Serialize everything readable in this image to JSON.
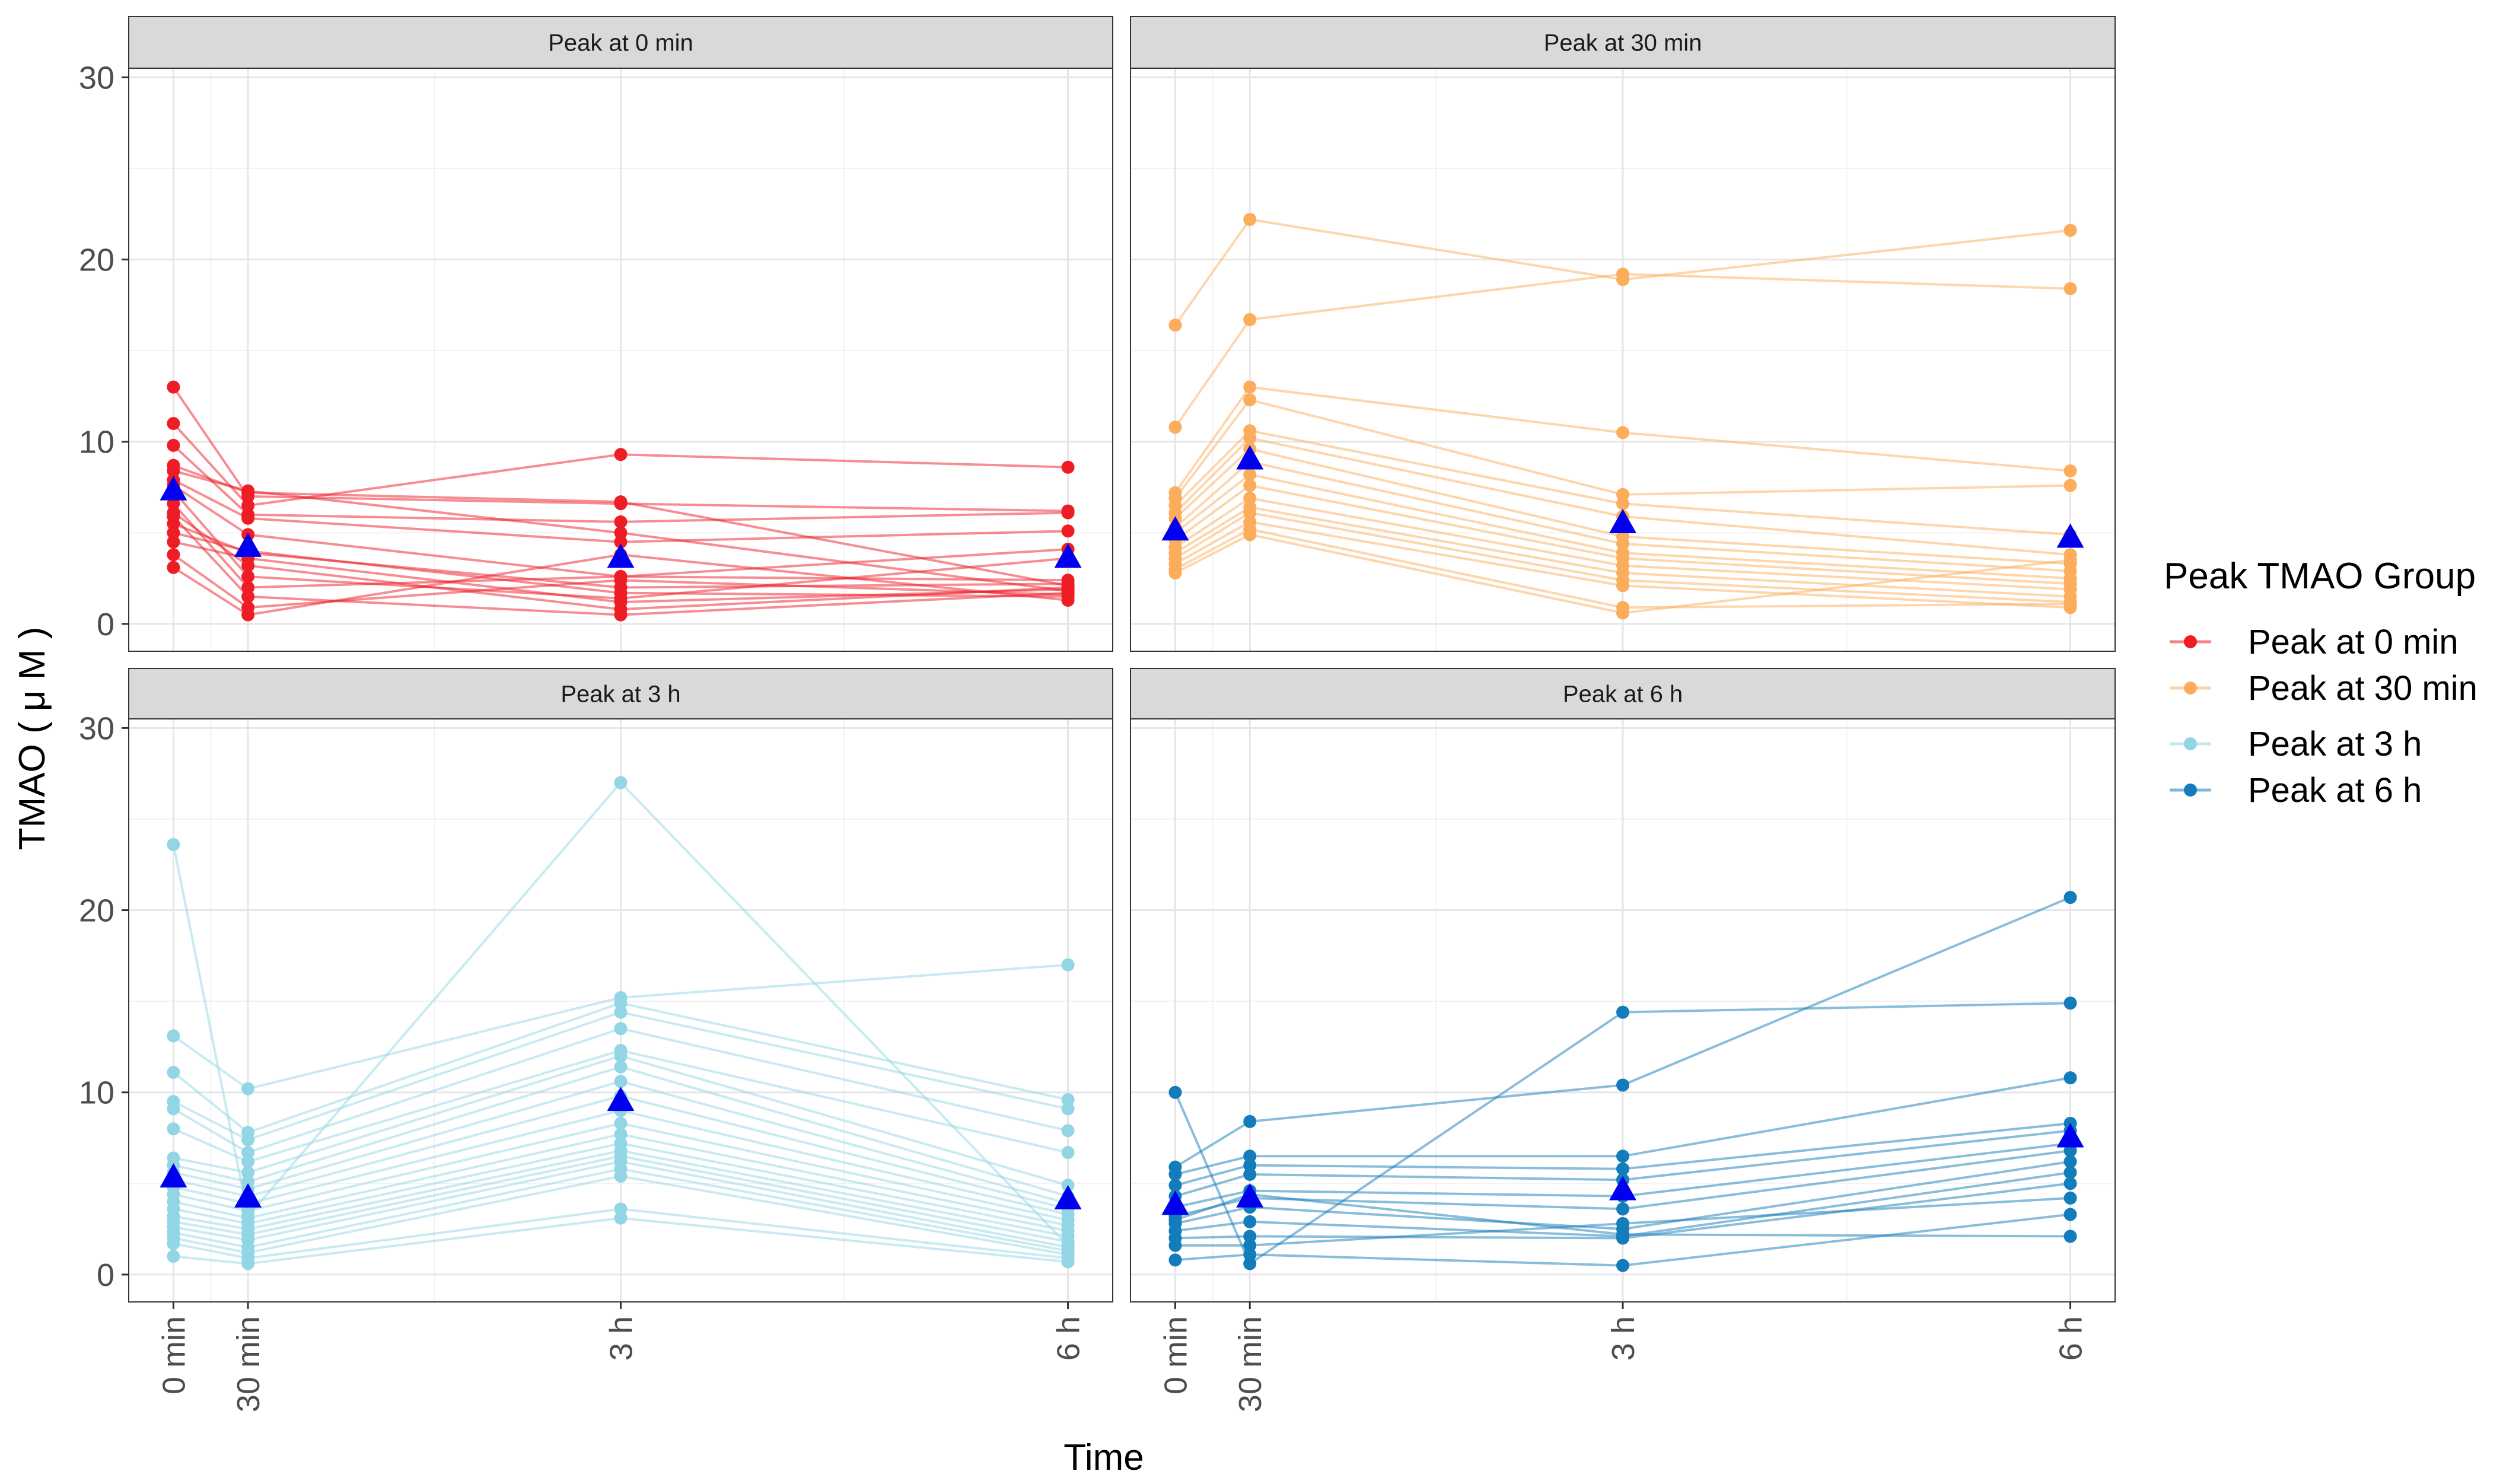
{
  "chart_data": {
    "type": "line",
    "facet_titles": [
      "Peak at 0 min",
      "Peak at 30 min",
      "Peak at 3 h",
      "Peak at 6 h"
    ],
    "xlabel": "Time",
    "ylabel": "TMAO ( μ M )",
    "x_categories": [
      "0 min",
      "30 min",
      "3 h",
      "6 h"
    ],
    "x_positions_hours": [
      0,
      0.5,
      3,
      6
    ],
    "y_ticks": [
      "0",
      "10",
      "20",
      "30"
    ],
    "ylim": [
      -1.5,
      30.5
    ],
    "legend": {
      "title": "Peak TMAO Group",
      "entries": [
        "Peak at 0 min",
        "Peak at 30 min",
        "Peak at 3 h",
        "Peak at 6 h"
      ]
    },
    "colors": {
      "Peak at 0 min": "#ee1c25",
      "Peak at 30 min": "#fbad5b",
      "Peak at 3 h": "#92d6e6",
      "Peak at 6 h": "#137cba",
      "mean_marker": "#0000ee"
    },
    "panels": [
      {
        "group": "Peak at 0 min",
        "means": [
          7.3,
          4.2,
          3.6,
          3.6
        ],
        "subjects": [
          [
            13.0,
            7.0,
            6.6,
            6.2
          ],
          [
            11.0,
            6.5,
            9.3,
            8.6
          ],
          [
            9.8,
            6.0,
            5.6,
            6.1
          ],
          [
            8.7,
            7.2,
            6.7,
            2.1
          ],
          [
            8.4,
            7.3,
            5.0,
            1.8
          ],
          [
            7.9,
            5.8,
            4.5,
            5.1
          ],
          [
            7.6,
            4.9,
            2.6,
            4.1
          ],
          [
            7.3,
            2.6,
            1.4,
            3.6
          ],
          [
            6.6,
            2.0,
            2.6,
            2.4
          ],
          [
            6.1,
            3.2,
            0.8,
            2.0
          ],
          [
            5.9,
            1.5,
            0.5,
            1.7
          ],
          [
            5.5,
            3.9,
            2.0,
            2.2
          ],
          [
            5.0,
            4.0,
            1.7,
            1.5
          ],
          [
            4.5,
            3.6,
            1.2,
            1.9
          ],
          [
            3.8,
            0.9,
            2.4,
            1.6
          ],
          [
            3.1,
            0.5,
            3.8,
            1.3
          ]
        ]
      },
      {
        "group": "Peak at 30 min",
        "means": [
          5.1,
          9.0,
          5.5,
          4.7
        ],
        "subjects": [
          [
            16.4,
            22.2,
            18.9,
            21.6
          ],
          [
            10.8,
            16.7,
            19.2,
            18.4
          ],
          [
            7.2,
            13.0,
            10.5,
            8.4
          ],
          [
            6.9,
            12.3,
            7.1,
            7.6
          ],
          [
            6.5,
            10.6,
            6.6,
            4.9
          ],
          [
            6.1,
            10.2,
            5.9,
            3.8
          ],
          [
            5.8,
            9.6,
            4.8,
            3.3
          ],
          [
            5.3,
            8.9,
            4.4,
            2.9
          ],
          [
            5.0,
            8.2,
            3.9,
            2.5
          ],
          [
            4.6,
            7.6,
            3.6,
            2.2
          ],
          [
            4.2,
            6.9,
            3.2,
            1.9
          ],
          [
            3.9,
            6.4,
            2.8,
            1.5
          ],
          [
            3.6,
            6.1,
            2.4,
            1.2
          ],
          [
            3.3,
            5.6,
            2.1,
            0.9
          ],
          [
            3.0,
            5.2,
            0.9,
            1.1
          ],
          [
            2.8,
            4.9,
            0.6,
            3.5
          ]
        ]
      },
      {
        "group": "Peak at 3 h",
        "means": [
          5.3,
          4.2,
          9.5,
          4.1
        ],
        "subjects": [
          [
            23.6,
            3.2,
            27.0,
            1.6
          ],
          [
            13.1,
            10.2,
            15.2,
            17.0
          ],
          [
            11.1,
            7.8,
            14.9,
            9.6
          ],
          [
            9.5,
            7.4,
            14.4,
            9.1
          ],
          [
            9.1,
            6.7,
            13.5,
            7.9
          ],
          [
            8.0,
            6.2,
            12.3,
            6.7
          ],
          [
            6.4,
            5.6,
            12.0,
            4.9
          ],
          [
            6.0,
            5.1,
            11.4,
            4.3
          ],
          [
            5.6,
            4.7,
            10.6,
            3.9
          ],
          [
            5.2,
            4.3,
            9.8,
            3.6
          ],
          [
            4.8,
            3.9,
            9.0,
            3.3
          ],
          [
            4.4,
            3.5,
            8.3,
            3.0
          ],
          [
            4.0,
            3.1,
            7.7,
            2.7
          ],
          [
            3.6,
            2.8,
            7.2,
            2.4
          ],
          [
            3.2,
            2.5,
            6.8,
            2.1
          ],
          [
            2.9,
            2.2,
            6.5,
            1.8
          ],
          [
            2.6,
            1.9,
            6.2,
            1.5
          ],
          [
            2.3,
            1.5,
            5.8,
            1.3
          ],
          [
            2.0,
            1.2,
            5.4,
            1.1
          ],
          [
            1.7,
            0.9,
            3.6,
            0.9
          ],
          [
            1.0,
            0.6,
            3.1,
            0.7
          ]
        ]
      },
      {
        "group": "Peak at 6 h",
        "means": [
          3.8,
          4.2,
          4.6,
          7.5
        ],
        "subjects": [
          [
            10.0,
            0.6,
            14.4,
            14.9
          ],
          [
            5.9,
            8.4,
            10.4,
            20.7
          ],
          [
            5.5,
            6.5,
            6.5,
            10.8
          ],
          [
            4.9,
            6.0,
            5.8,
            8.3
          ],
          [
            4.3,
            5.5,
            5.2,
            7.9
          ],
          [
            3.7,
            4.6,
            4.3,
            7.2
          ],
          [
            3.2,
            4.2,
            3.6,
            6.8
          ],
          [
            2.8,
            3.7,
            2.5,
            6.2
          ],
          [
            2.4,
            2.9,
            2.1,
            5.6
          ],
          [
            2.0,
            2.1,
            2.0,
            5.0
          ],
          [
            1.6,
            1.6,
            2.8,
            4.2
          ],
          [
            0.8,
            1.1,
            0.5,
            3.3
          ],
          [
            3.0,
            4.4,
            2.2,
            2.1
          ]
        ]
      }
    ]
  }
}
